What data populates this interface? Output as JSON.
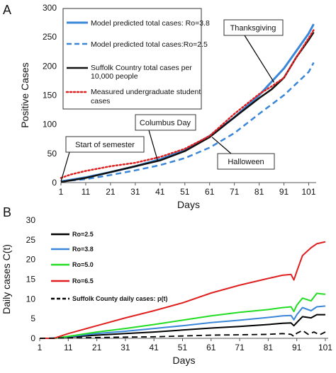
{
  "chart_data": [
    {
      "panel": "A",
      "type": "line",
      "xlabel": "Days",
      "ylabel": "Positive Cases",
      "xlim": [
        1,
        104
      ],
      "ylim": [
        0,
        300
      ],
      "xticks": [
        1,
        11,
        21,
        31,
        41,
        51,
        61,
        71,
        81,
        91,
        101
      ],
      "yticks": [
        0,
        50,
        100,
        150,
        200,
        250,
        300
      ],
      "grid": false,
      "legend_position": "top-left",
      "series": [
        {
          "name": "Model predicted total cases: Ro=3.8",
          "color": "#3a86d8",
          "style": "solid",
          "x": [
            1,
            11,
            21,
            31,
            41,
            51,
            61,
            71,
            81,
            91,
            101,
            103
          ],
          "y": [
            2,
            9,
            18,
            28,
            40,
            56,
            80,
            112,
            150,
            196,
            256,
            272
          ]
        },
        {
          "name": "Model predicted total cases:Ro=2.5",
          "color": "#3a86d8",
          "style": "dashed",
          "x": [
            1,
            11,
            21,
            31,
            41,
            51,
            61,
            71,
            81,
            91,
            101,
            103
          ],
          "y": [
            2,
            6,
            13,
            21,
            30,
            42,
            60,
            85,
            118,
            150,
            190,
            206
          ]
        },
        {
          "name": "Suffolk Country total cases per 10,000 people",
          "color": "#111111",
          "style": "solid",
          "x": [
            1,
            11,
            21,
            31,
            41,
            51,
            61,
            71,
            81,
            86,
            91,
            96,
            101,
            103
          ],
          "y": [
            1,
            8,
            18,
            28,
            38,
            54,
            78,
            112,
            145,
            160,
            180,
            215,
            245,
            258
          ]
        },
        {
          "name": "Measured undergraduate student cases",
          "color": "#e02020",
          "style": "dotted",
          "x": [
            1,
            5,
            11,
            21,
            31,
            41,
            51,
            61,
            71,
            81,
            86,
            91,
            96,
            101,
            103
          ],
          "y": [
            8,
            14,
            20,
            28,
            34,
            44,
            58,
            80,
            118,
            152,
            165,
            180,
            215,
            248,
            262
          ]
        }
      ],
      "annotations": [
        {
          "text": "Start of semester",
          "x": 1,
          "y": 2
        },
        {
          "text": "Columbus Day",
          "x": 40,
          "y": 38
        },
        {
          "text": "Thanksgiving",
          "x": 87,
          "y": 172
        },
        {
          "text": "Halloween",
          "x": 62,
          "y": 78
        }
      ]
    },
    {
      "panel": "B",
      "type": "line",
      "xlabel": "Days",
      "ylabel": "Daily cases C(t)",
      "xlim": [
        1,
        102
      ],
      "ylim": [
        0,
        30
      ],
      "xticks": [
        1,
        11,
        21,
        31,
        41,
        51,
        61,
        71,
        81,
        91,
        101
      ],
      "yticks": [
        0,
        5,
        10,
        15,
        20,
        25,
        30
      ],
      "grid": false,
      "legend_position": "top-left",
      "series": [
        {
          "name": "Ro=2.5",
          "color": "#000000",
          "style": "solid",
          "x": [
            1,
            6,
            11,
            21,
            31,
            41,
            51,
            61,
            71,
            81,
            86,
            89,
            90,
            91,
            93,
            96,
            98,
            101
          ],
          "y": [
            0,
            0,
            0.3,
            0.8,
            1.2,
            1.6,
            2.1,
            2.6,
            3.0,
            3.5,
            3.8,
            3.9,
            3.2,
            4.0,
            5.5,
            5.2,
            6.0,
            6.0
          ]
        },
        {
          "name": "Ro=3.8",
          "color": "#3a86d8",
          "style": "solid",
          "x": [
            1,
            6,
            11,
            21,
            31,
            41,
            51,
            61,
            71,
            81,
            86,
            89,
            90,
            91,
            93,
            96,
            98,
            101
          ],
          "y": [
            0,
            0,
            0.4,
            1.2,
            1.8,
            2.5,
            3.2,
            4.0,
            4.6,
            5.3,
            5.7,
            5.8,
            4.7,
            6.0,
            7.8,
            7.0,
            8.0,
            8.2
          ]
        },
        {
          "name": "Ro=5.0",
          "color": "#22dd22",
          "style": "solid",
          "x": [
            1,
            6,
            11,
            21,
            31,
            41,
            51,
            61,
            71,
            81,
            86,
            89,
            90,
            91,
            93,
            96,
            98,
            101
          ],
          "y": [
            0,
            0,
            0.5,
            1.6,
            2.5,
            3.5,
            4.6,
            5.7,
            6.6,
            7.3,
            7.8,
            8.0,
            6.8,
            8.4,
            10.2,
            9.5,
            11.4,
            11.2
          ]
        },
        {
          "name": "Ro=6.5",
          "color": "#e02020",
          "style": "solid",
          "x": [
            1,
            6,
            11,
            21,
            31,
            41,
            51,
            61,
            71,
            81,
            86,
            89,
            90,
            91,
            93,
            96,
            98,
            101
          ],
          "y": [
            0,
            0,
            1.2,
            3.2,
            5.2,
            7.0,
            9.0,
            11.5,
            13.5,
            15.2,
            16.0,
            16.2,
            14.8,
            17.0,
            21.0,
            23.0,
            24.0,
            24.5
          ]
        },
        {
          "name": "Suffolk County daily cases: p(t)",
          "color": "#000000",
          "style": "dashed",
          "x": [
            1,
            11,
            21,
            31,
            41,
            51,
            61,
            71,
            81,
            86,
            89,
            90,
            91,
            93,
            95,
            97,
            99,
            101
          ],
          "y": [
            0,
            0.1,
            0.2,
            0.3,
            0.4,
            0.6,
            0.8,
            0.9,
            1.0,
            1.2,
            1.0,
            0.5,
            1.3,
            2.0,
            1.0,
            1.6,
            0.9,
            1.6
          ]
        }
      ]
    }
  ]
}
